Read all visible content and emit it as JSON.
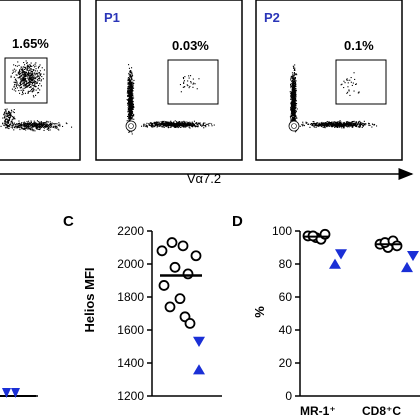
{
  "flow_panels": [
    {
      "label": "",
      "percent": "1.65%"
    },
    {
      "label": "P1",
      "percent": "0.03%"
    },
    {
      "label": "P2",
      "percent": "0.1%"
    }
  ],
  "flow_axis": {
    "label": "Vα7.2"
  },
  "colors": {
    "panel_label": "#2a35b8",
    "triangle": "#1a2fd6",
    "axis": "#000000"
  },
  "chart_data": [
    {
      "type": "scatter",
      "panel": "C",
      "ylabel": "Helios MFI",
      "ylim": [
        1200,
        2200
      ],
      "yticks": [
        1200,
        1400,
        1600,
        1800,
        2000,
        2200
      ],
      "series": [
        {
          "marker": "circle",
          "values": [
            2130,
            2110,
            2080,
            2050,
            1980,
            1940,
            1870,
            1790,
            1740,
            1680,
            1640
          ]
        },
        {
          "marker": "triangle",
          "values": [
            1530,
            1360
          ]
        }
      ],
      "median": 1930
    },
    {
      "type": "scatter",
      "panel": "D",
      "ylabel": "%",
      "ylim": [
        0,
        100
      ],
      "yticks": [
        0,
        20,
        40,
        60,
        80,
        100
      ],
      "categories": [
        "MR-1⁺",
        "CD8⁺C"
      ],
      "series": [
        {
          "marker": "circle",
          "values": [
            [
              97,
              96,
              97,
              95,
              98
            ],
            [
              92,
              90,
              93,
              94,
              91
            ]
          ]
        },
        {
          "marker": "triangle",
          "values": [
            [
              86,
              80
            ],
            [
              85,
              78
            ]
          ]
        }
      ]
    }
  ]
}
